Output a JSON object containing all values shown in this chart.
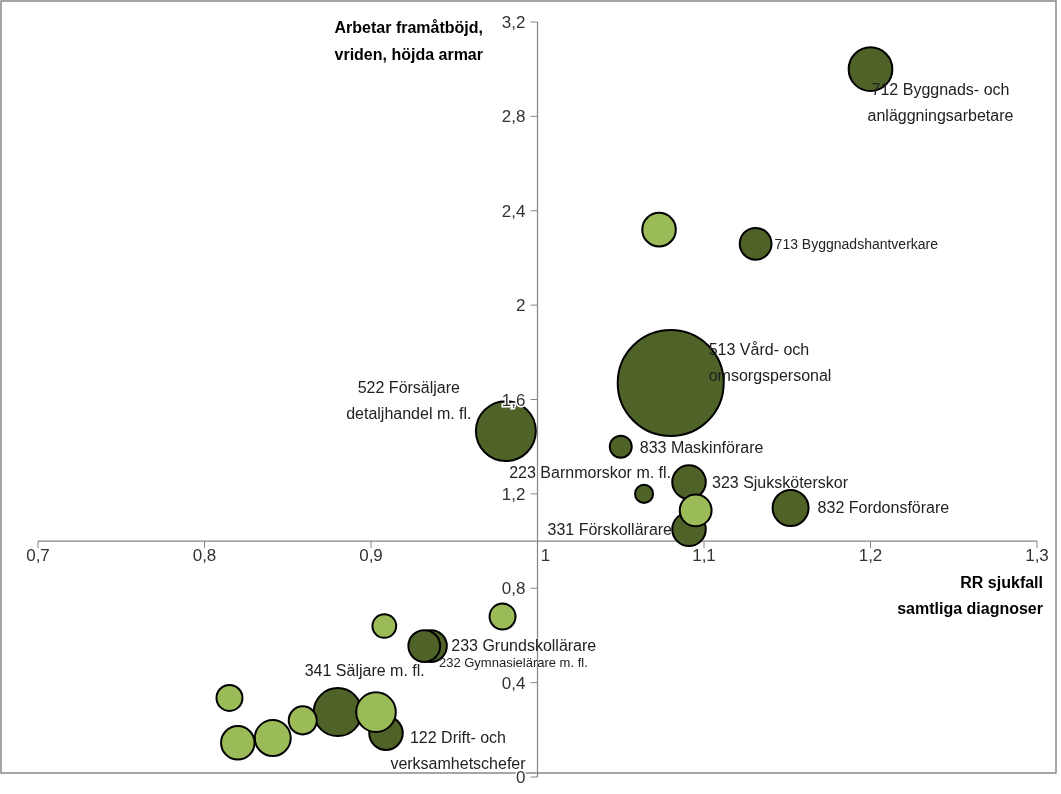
{
  "chart_data": {
    "type": "bubble",
    "xlabel": "RR sjukfall\nsamtliga diagnoser",
    "ylabel": "Arbetar framåtböjd,\nvriden, höjda armar",
    "xlim": [
      0.7,
      1.3
    ],
    "ylim": [
      0,
      3.2
    ],
    "xticks": [
      {
        "value": 0.7,
        "label": "0,7"
      },
      {
        "value": 0.8,
        "label": "0,8"
      },
      {
        "value": 0.9,
        "label": "0,9"
      },
      1,
      {
        "value": 1.1,
        "label": "1,1"
      },
      {
        "value": 1.2,
        "label": "1,2"
      },
      {
        "value": 1.3,
        "label": "1,3"
      }
    ],
    "yticks": [
      0,
      {
        "value": 0.4,
        "label": "0,4"
      },
      {
        "value": 0.8,
        "label": "0,8"
      },
      {
        "value": 1.2,
        "label": "1,2"
      },
      {
        "value": 1.6,
        "label": "1,6"
      },
      2,
      {
        "value": 2.4,
        "label": "2,4"
      },
      {
        "value": 2.8,
        "label": "2,8"
      },
      {
        "value": 3.2,
        "label": "3,2"
      }
    ],
    "grid": false,
    "series": [
      {
        "color": "#4f6228",
        "x": [
          1.2,
          1.131,
          1.08,
          0.981,
          1.05,
          1.064,
          1.091,
          1.091,
          1.152,
          0.936,
          0.932,
          0.88,
          0.909
        ],
        "values": [
          3.0,
          2.26,
          1.67,
          1.466,
          1.4,
          1.2,
          1.25,
          1.05,
          1.14,
          0.555,
          0.555,
          0.275,
          0.186
        ],
        "sizes": [
          0.17,
          0.09,
          1,
          0.32,
          0.043,
          0.029,
          0.1,
          0.1,
          0.115,
          0.09,
          0.09,
          0.205,
          0.1
        ]
      },
      {
        "color": "#9bbb59",
        "x": [
          1.073,
          1.095,
          0.979,
          0.908,
          0.903,
          0.859,
          0.841,
          0.82,
          0.815
        ],
        "values": [
          2.32,
          1.13,
          0.68,
          0.64,
          0.275,
          0.24,
          0.165,
          0.145,
          0.335
        ],
        "sizes": [
          0.1,
          0.09,
          0.06,
          0.05,
          0.14,
          0.07,
          0.115,
          0.1,
          0.06
        ]
      }
    ],
    "annotations": [
      {
        "text": "712 Byggnads- och\nanläggningsarbetare",
        "x": 1.2,
        "y": 3.0
      },
      {
        "text": "713 Byggnadshantverkare",
        "x": 1.131,
        "y": 2.26
      },
      {
        "text": "513 Vård- och\nomsorgspersonal",
        "x": 1.08,
        "y": 1.67
      },
      {
        "text": "522 Försäljare\ndetaljhandel m. fl.",
        "x": 0.981,
        "y": 1.466
      },
      {
        "text": "833 Maskinförare",
        "x": 1.05,
        "y": 1.4
      },
      {
        "text": "223 Barnmorskor m. fl.",
        "x": 1.064,
        "y": 1.2
      },
      {
        "text": "323 Sjuksköterskor",
        "x": 1.091,
        "y": 1.25
      },
      {
        "text": "331 Förskollärare",
        "x": 1.091,
        "y": 1.05
      },
      {
        "text": "832 Fordonsförare",
        "x": 1.152,
        "y": 1.14
      },
      {
        "text": "233 Grundskollärare",
        "x": 0.932,
        "y": 0.555
      },
      {
        "text": "232 Gymnasielärare m. fl.",
        "x": 0.936,
        "y": 0.555
      },
      {
        "text": "341 Säljare m. fl.",
        "x": 0.88,
        "y": 0.275
      },
      {
        "text": "122 Drift- och\nverksamhetschefer",
        "x": 0.909,
        "y": 0.186
      }
    ]
  }
}
